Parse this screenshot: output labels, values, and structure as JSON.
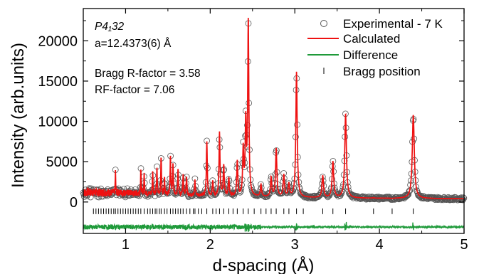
{
  "chart_data": {
    "type": "line",
    "xlabel": "d-spacing (Å)",
    "ylabel": "Intensity (arb.units)",
    "xlim": [
      0.5,
      5.0
    ],
    "ylim": [
      -3900,
      24000
    ],
    "xticks": [
      1,
      2,
      3,
      4,
      5
    ],
    "yticks": [
      0,
      5000,
      10000,
      15000,
      20000
    ],
    "grid": false,
    "legend_position": "top-right",
    "annotations": {
      "space_group": "P4₁32",
      "lattice": "a=12.4373(6) Å",
      "bragg_r": "Bragg R-factor = 3.58",
      "rf": "RF-factor = 7.06"
    },
    "legend": {
      "experimental": "Experimental - 7 K",
      "calculated": "Calculated",
      "difference": "Difference",
      "bragg": "Bragg position"
    },
    "colors": {
      "experimental": "#555555",
      "calculated": "#ee1111",
      "difference": "#1f9a3a",
      "bragg": "#000000"
    },
    "background": [
      [
        0.5,
        1200
      ],
      [
        1.0,
        1150
      ],
      [
        1.5,
        900
      ],
      [
        2.0,
        750
      ],
      [
        2.5,
        650
      ],
      [
        3.0,
        550
      ],
      [
        3.5,
        500
      ],
      [
        4.0,
        450
      ],
      [
        5.0,
        400
      ]
    ],
    "peaks": [
      {
        "d": 0.88,
        "intensity": 3800
      },
      {
        "d": 1.18,
        "intensity": 4100
      },
      {
        "d": 1.22,
        "intensity": 3500
      },
      {
        "d": 1.32,
        "intensity": 3800
      },
      {
        "d": 1.37,
        "intensity": 4200
      },
      {
        "d": 1.42,
        "intensity": 5600
      },
      {
        "d": 1.46,
        "intensity": 3000
      },
      {
        "d": 1.53,
        "intensity": 5500
      },
      {
        "d": 1.56,
        "intensity": 4500
      },
      {
        "d": 1.62,
        "intensity": 4100
      },
      {
        "d": 1.68,
        "intensity": 3200
      },
      {
        "d": 1.72,
        "intensity": 3000
      },
      {
        "d": 1.82,
        "intensity": 2600
      },
      {
        "d": 1.96,
        "intensity": 7500
      },
      {
        "d": 2.03,
        "intensity": 2500
      },
      {
        "d": 2.11,
        "intensity": 8600
      },
      {
        "d": 2.16,
        "intensity": 4500
      },
      {
        "d": 2.22,
        "intensity": 3000
      },
      {
        "d": 2.32,
        "intensity": 5000
      },
      {
        "d": 2.39,
        "intensity": 6300
      },
      {
        "d": 2.42,
        "intensity": 9500
      },
      {
        "d": 2.45,
        "intensity": 22300
      },
      {
        "d": 2.6,
        "intensity": 2100
      },
      {
        "d": 2.72,
        "intensity": 3000
      },
      {
        "d": 2.78,
        "intensity": 6600
      },
      {
        "d": 2.87,
        "intensity": 3300
      },
      {
        "d": 2.93,
        "intensity": 2200
      },
      {
        "d": 3.02,
        "intensity": 16100
      },
      {
        "d": 3.33,
        "intensity": 3200
      },
      {
        "d": 3.45,
        "intensity": 5000
      },
      {
        "d": 3.6,
        "intensity": 10900
      },
      {
        "d": 3.93,
        "intensity": 500
      },
      {
        "d": 4.15,
        "intensity": 400
      },
      {
        "d": 4.4,
        "intensity": 10800
      }
    ],
    "bragg_positions": [
      0.62,
      0.65,
      0.68,
      0.71,
      0.74,
      0.77,
      0.8,
      0.83,
      0.86,
      0.88,
      0.91,
      0.94,
      0.97,
      1.0,
      1.03,
      1.06,
      1.09,
      1.12,
      1.15,
      1.18,
      1.22,
      1.26,
      1.29,
      1.32,
      1.35,
      1.37,
      1.4,
      1.42,
      1.46,
      1.49,
      1.53,
      1.56,
      1.59,
      1.62,
      1.65,
      1.68,
      1.72,
      1.76,
      1.8,
      1.82,
      1.86,
      1.9,
      1.96,
      2.03,
      2.07,
      2.11,
      2.16,
      2.22,
      2.27,
      2.32,
      2.39,
      2.45,
      2.52,
      2.6,
      2.66,
      2.72,
      2.78,
      2.87,
      2.93,
      3.02,
      3.1,
      3.33,
      3.45,
      3.6,
      3.93,
      4.15,
      4.4
    ]
  }
}
